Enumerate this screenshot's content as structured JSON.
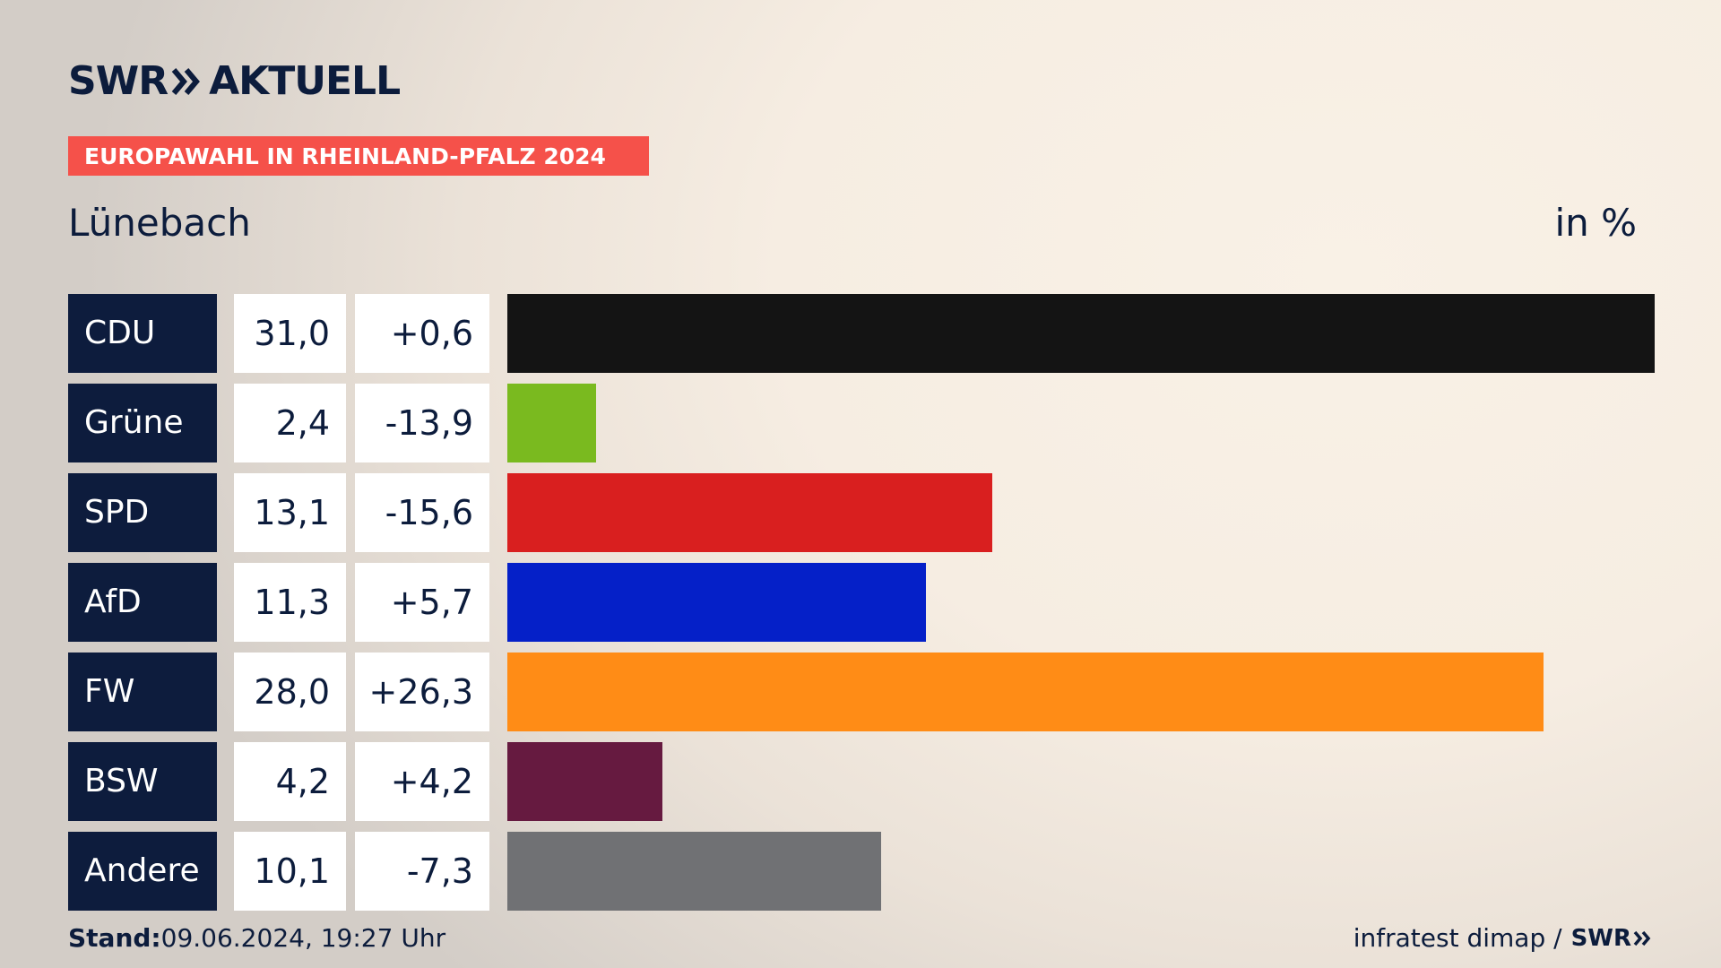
{
  "brand": {
    "name": "SWR",
    "product": "AKTUELL"
  },
  "banner": "EUROPAWAHL IN RHEINLAND-PFALZ 2024",
  "subtitle": "Lünebach",
  "unit": "in %",
  "footer": {
    "stand_label": "Stand:",
    "stand_value": "09.06.2024, 19:27 Uhr",
    "source": "infratest dimap /",
    "source_brand": "SWR"
  },
  "chart_data": {
    "type": "bar",
    "title": "",
    "xlabel": "",
    "ylabel": "",
    "xlim": [
      0,
      31.0
    ],
    "categories": [
      "CDU",
      "Grüne",
      "SPD",
      "AfD",
      "FW",
      "BSW",
      "Andere"
    ],
    "values": [
      31.0,
      2.4,
      13.1,
      11.3,
      28.0,
      4.2,
      10.1
    ],
    "value_labels": [
      "31,0",
      "2,4",
      "13,1",
      "11,3",
      "28,0",
      "4,2",
      "10,1"
    ],
    "diff_labels": [
      "+0,6",
      "-13,9",
      "-15,6",
      "+5,7",
      "+26,3",
      "+4,2",
      "-7,3"
    ],
    "colors": [
      "#141414",
      "#7aba1f",
      "#d91f1f",
      "#0520c8",
      "#ff8c16",
      "#661a40",
      "#707174"
    ]
  }
}
